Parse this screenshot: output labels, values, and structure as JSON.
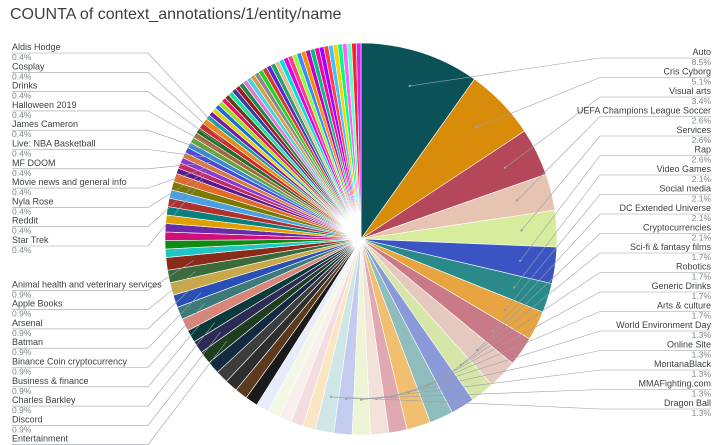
{
  "chart_data": {
    "type": "pie",
    "title": "COUNTA of context_annotations/1/entity/name",
    "start_angle_deg": 0,
    "slices": [
      {
        "name": "Auto",
        "pct": "8.5%",
        "value": 8.5,
        "color": "#0b5258",
        "labeled": true,
        "side": "right"
      },
      {
        "name": "Cris Cyborg",
        "pct": "5.1%",
        "value": 5.1,
        "color": "#d98c0a",
        "labeled": true,
        "side": "right"
      },
      {
        "name": "Visual arts",
        "pct": "3.4%",
        "value": 3.4,
        "color": "#b4475a",
        "labeled": true,
        "side": "right"
      },
      {
        "name": "UEFA Champions League Soccer",
        "pct": "2.6%",
        "value": 2.6,
        "color": "#e7c4b2",
        "labeled": true,
        "side": "right"
      },
      {
        "name": "Services",
        "pct": "2.6%",
        "value": 2.6,
        "color": "#d7ec9c",
        "labeled": true,
        "side": "right"
      },
      {
        "name": "Rap",
        "pct": "2.6%",
        "value": 2.6,
        "color": "#3a54c3",
        "labeled": true,
        "side": "right"
      },
      {
        "name": "Video Games",
        "pct": "2.1%",
        "value": 2.1,
        "color": "#2a8a8a",
        "labeled": true,
        "side": "right"
      },
      {
        "name": "Social media",
        "pct": "2.1%",
        "value": 2.1,
        "color": "#e8a440",
        "labeled": true,
        "side": "right"
      },
      {
        "name": "DC Extended Universe",
        "pct": "2.1%",
        "value": 2.1,
        "color": "#c97a86",
        "labeled": true,
        "side": "right"
      },
      {
        "name": "Cryptocurrencies",
        "pct": "2.1%",
        "value": 2.1,
        "color": "#e6c9be",
        "labeled": true,
        "side": "right"
      },
      {
        "name": "Sci-fi & fantasy films",
        "pct": "1.7%",
        "value": 1.7,
        "color": "#d6e6a8",
        "labeled": true,
        "side": "right"
      },
      {
        "name": "Robotics",
        "pct": "1.7%",
        "value": 1.7,
        "color": "#8a9ad8",
        "labeled": true,
        "side": "right"
      },
      {
        "name": "Generic Drinks",
        "pct": "1.7%",
        "value": 1.7,
        "color": "#8fbcbc",
        "labeled": true,
        "side": "right"
      },
      {
        "name": "Arts & culture",
        "pct": "1.7%",
        "value": 1.7,
        "color": "#f0c070",
        "labeled": true,
        "side": "right"
      },
      {
        "name": "World Environment Day",
        "pct": "1.3%",
        "value": 1.3,
        "color": "#e0a8b0",
        "labeled": true,
        "side": "right"
      },
      {
        "name": "Online Site",
        "pct": "1.3%",
        "value": 1.3,
        "color": "#f2e2da",
        "labeled": true,
        "side": "right"
      },
      {
        "name": "MontanaBlack",
        "pct": "1.3%",
        "value": 1.3,
        "color": "#eef4d6",
        "labeled": true,
        "side": "right"
      },
      {
        "name": "MMAFighting.com",
        "pct": "1.3%",
        "value": 1.3,
        "color": "#c3cbef",
        "labeled": true,
        "side": "right"
      },
      {
        "name": "Dragon Ball",
        "pct": "1.3%",
        "value": 1.3,
        "color": "#cfe6e6",
        "labeled": true,
        "side": "right"
      },
      {
        "name": "",
        "pct": "",
        "value": 0.9,
        "color": "#fbe6c4",
        "labeled": false
      },
      {
        "name": "",
        "pct": "",
        "value": 0.9,
        "color": "#f4dce0",
        "labeled": false
      },
      {
        "name": "",
        "pct": "",
        "value": 0.9,
        "color": "#f7f0ec",
        "labeled": false
      },
      {
        "name": "",
        "pct": "",
        "value": 0.9,
        "color": "#f3f7e6",
        "labeled": false
      },
      {
        "name": "",
        "pct": "",
        "value": 0.9,
        "color": "#e8ebfa",
        "labeled": false
      },
      {
        "name": "",
        "pct": "",
        "value": 0.9,
        "color": "#1a1a1a",
        "labeled": false
      },
      {
        "name": "",
        "pct": "",
        "value": 0.9,
        "color": "#5c3a1e",
        "labeled": false
      },
      {
        "name": "",
        "pct": "",
        "value": 0.9,
        "color": "#2e2e2e",
        "labeled": false
      },
      {
        "name": "",
        "pct": "",
        "value": 0.9,
        "color": "#3d3d3d",
        "labeled": false
      },
      {
        "name": "",
        "pct": "",
        "value": 0.9,
        "color": "#142a40",
        "labeled": false
      },
      {
        "name": "Entertainment",
        "pct": "0.9%",
        "value": 0.9,
        "color": "#1f3d1f",
        "labeled": true,
        "side": "left"
      },
      {
        "name": "Discord",
        "pct": "0.9%",
        "value": 0.9,
        "color": "#2b2b55",
        "labeled": true,
        "side": "left"
      },
      {
        "name": "Charles Barkley",
        "pct": "0.9%",
        "value": 0.9,
        "color": "#0a3a3a",
        "labeled": true,
        "side": "left"
      },
      {
        "name": "Business & finance",
        "pct": "0.9%",
        "value": 0.9,
        "color": "#d8857a",
        "labeled": true,
        "side": "left"
      },
      {
        "name": "Binance Coin cryptocurrency",
        "pct": "0.9%",
        "value": 0.9,
        "color": "#3d7a7a",
        "labeled": true,
        "side": "left"
      },
      {
        "name": "Batman",
        "pct": "0.9%",
        "value": 0.9,
        "color": "#2a50b8",
        "labeled": true,
        "side": "left"
      },
      {
        "name": "Arsenal",
        "pct": "0.9%",
        "value": 0.9,
        "color": "#c9a84a",
        "labeled": true,
        "side": "left"
      },
      {
        "name": "Apple Books",
        "pct": "0.9%",
        "value": 0.9,
        "color": "#3b6b3b",
        "labeled": true,
        "side": "left"
      },
      {
        "name": "Animal health and veterinary services",
        "pct": "0.9%",
        "value": 0.9,
        "color": "#8a2a1a",
        "labeled": true,
        "side": "left"
      },
      {
        "name": "",
        "pct": "",
        "value": 0.6,
        "color": "#22c5c5",
        "labeled": false
      },
      {
        "name": "",
        "pct": "",
        "value": 0.6,
        "color": "#118a11",
        "labeled": false
      },
      {
        "name": "",
        "pct": "",
        "value": 0.6,
        "color": "#d10f7a",
        "labeled": false
      },
      {
        "name": "",
        "pct": "",
        "value": 0.6,
        "color": "#6b2aa8",
        "labeled": false
      },
      {
        "name": "",
        "pct": "",
        "value": 0.6,
        "color": "#e0a000",
        "labeled": false
      },
      {
        "name": "",
        "pct": "",
        "value": 0.6,
        "color": "#0a7f7f",
        "labeled": false
      },
      {
        "name": "",
        "pct": "",
        "value": 0.6,
        "color": "#b03030",
        "labeled": false
      },
      {
        "name": "",
        "pct": "",
        "value": 0.6,
        "color": "#4aa0e0",
        "labeled": false
      },
      {
        "name": "",
        "pct": "",
        "value": 0.6,
        "color": "#7a7a00",
        "labeled": false
      },
      {
        "name": "",
        "pct": "",
        "value": 0.6,
        "color": "#e06a2a",
        "labeled": false
      },
      {
        "name": "Star Trek",
        "pct": "0.4%",
        "value": 0.4,
        "color": "#5a1a8a",
        "labeled": true,
        "side": "left"
      },
      {
        "name": "Reddit",
        "pct": "0.4%",
        "value": 0.4,
        "color": "#c02a6a",
        "labeled": true,
        "side": "left"
      },
      {
        "name": "Nyla Rose",
        "pct": "0.4%",
        "value": 0.4,
        "color": "#8a3ad0",
        "labeled": true,
        "side": "left"
      },
      {
        "name": "Movie news and general info",
        "pct": "0.4%",
        "value": 0.4,
        "color": "#d67a3a",
        "labeled": true,
        "side": "left"
      },
      {
        "name": "MF DOOM",
        "pct": "0.4%",
        "value": 0.4,
        "color": "#4a4ad6",
        "labeled": true,
        "side": "left"
      },
      {
        "name": "Live: NBA Basketball",
        "pct": "0.4%",
        "value": 0.4,
        "color": "#3a8ad0",
        "labeled": true,
        "side": "left"
      },
      {
        "name": "James Cameron",
        "pct": "0.4%",
        "value": 0.4,
        "color": "#6aa040",
        "labeled": true,
        "side": "left"
      },
      {
        "name": "Halloween 2019",
        "pct": "0.4%",
        "value": 0.4,
        "color": "#a06a3a",
        "labeled": true,
        "side": "left"
      },
      {
        "name": "Drinks",
        "pct": "0.4%",
        "value": 0.4,
        "color": "#2a6a2a",
        "labeled": true,
        "side": "left"
      },
      {
        "name": "Cosplay",
        "pct": "0.4%",
        "value": 0.4,
        "color": "#d02a2a",
        "labeled": true,
        "side": "left"
      },
      {
        "name": "Aldis Hodge",
        "pct": "0.4%",
        "value": 0.4,
        "color": "#ea8a1a",
        "labeled": true,
        "side": "left"
      },
      {
        "name": "",
        "pct": "",
        "value": 0.33,
        "color": "#1aa0a0",
        "labeled": false
      },
      {
        "name": "",
        "pct": "",
        "value": 0.33,
        "color": "#7a1aa0",
        "labeled": false
      },
      {
        "name": "",
        "pct": "",
        "value": 0.33,
        "color": "#e0d01a",
        "labeled": false
      },
      {
        "name": "",
        "pct": "",
        "value": 0.33,
        "color": "#1a6ae0",
        "labeled": false
      },
      {
        "name": "",
        "pct": "",
        "value": 0.33,
        "color": "#a0e01a",
        "labeled": false
      },
      {
        "name": "",
        "pct": "",
        "value": 0.33,
        "color": "#e01a6a",
        "labeled": false
      },
      {
        "name": "",
        "pct": "",
        "value": 0.33,
        "color": "#6a3a1a",
        "labeled": false
      },
      {
        "name": "",
        "pct": "",
        "value": 0.33,
        "color": "#1ae0a0",
        "labeled": false
      },
      {
        "name": "",
        "pct": "",
        "value": 0.33,
        "color": "#3a3aa0",
        "labeled": false
      },
      {
        "name": "",
        "pct": "",
        "value": 0.33,
        "color": "#a01a1a",
        "labeled": false
      },
      {
        "name": "",
        "pct": "",
        "value": 0.33,
        "color": "#1a8a4a",
        "labeled": false
      },
      {
        "name": "",
        "pct": "",
        "value": 0.33,
        "color": "#e07ad0",
        "labeled": false
      },
      {
        "name": "",
        "pct": "",
        "value": 0.33,
        "color": "#4ad0e0",
        "labeled": false
      },
      {
        "name": "",
        "pct": "",
        "value": 0.33,
        "color": "#d0a04a",
        "labeled": false
      },
      {
        "name": "",
        "pct": "",
        "value": 0.33,
        "color": "#8a8a8a",
        "labeled": false
      },
      {
        "name": "",
        "pct": "",
        "value": 0.33,
        "color": "#2ad02a",
        "labeled": false
      },
      {
        "name": "",
        "pct": "",
        "value": 0.33,
        "color": "#d0402a",
        "labeled": false
      },
      {
        "name": "",
        "pct": "",
        "value": 0.33,
        "color": "#5a2ad0",
        "labeled": false
      },
      {
        "name": "",
        "pct": "",
        "value": 0.33,
        "color": "#2aa06a",
        "labeled": false
      },
      {
        "name": "",
        "pct": "",
        "value": 0.33,
        "color": "#e0c08a",
        "labeled": false
      },
      {
        "name": "",
        "pct": "",
        "value": 0.33,
        "color": "#00e0e0",
        "labeled": false
      },
      {
        "name": "",
        "pct": "",
        "value": 0.33,
        "color": "#e000e0",
        "labeled": false
      },
      {
        "name": "",
        "pct": "",
        "value": 0.33,
        "color": "#ff3a8a",
        "labeled": false
      },
      {
        "name": "",
        "pct": "",
        "value": 0.33,
        "color": "#8aff3a",
        "labeled": false
      },
      {
        "name": "",
        "pct": "",
        "value": 0.33,
        "color": "#3a8aff",
        "labeled": false
      },
      {
        "name": "",
        "pct": "",
        "value": 0.33,
        "color": "#ff8a00",
        "labeled": false
      },
      {
        "name": "",
        "pct": "",
        "value": 0.33,
        "color": "#c000c0",
        "labeled": false
      },
      {
        "name": "",
        "pct": "",
        "value": 0.33,
        "color": "#00c080",
        "labeled": false
      },
      {
        "name": "",
        "pct": "",
        "value": 0.33,
        "color": "#ff00a0",
        "labeled": false
      },
      {
        "name": "",
        "pct": "",
        "value": 0.33,
        "color": "#a000ff",
        "labeled": false
      },
      {
        "name": "",
        "pct": "",
        "value": 0.33,
        "color": "#ff4040",
        "labeled": false
      },
      {
        "name": "",
        "pct": "",
        "value": 0.33,
        "color": "#40c0ff",
        "labeled": false
      },
      {
        "name": "",
        "pct": "",
        "value": 0.33,
        "color": "#ffd000",
        "labeled": false
      },
      {
        "name": "",
        "pct": "",
        "value": 0.33,
        "color": "#00ff80",
        "labeled": false
      },
      {
        "name": "",
        "pct": "",
        "value": 0.33,
        "color": "#ff60ff",
        "labeled": false
      },
      {
        "name": "",
        "pct": "",
        "value": 0.33,
        "color": "#60ffd0",
        "labeled": false
      },
      {
        "name": "",
        "pct": "",
        "value": 0.33,
        "color": "#ff2020",
        "labeled": false
      },
      {
        "name": "",
        "pct": "",
        "value": 0.33,
        "color": "#d020ff",
        "labeled": false
      }
    ]
  }
}
